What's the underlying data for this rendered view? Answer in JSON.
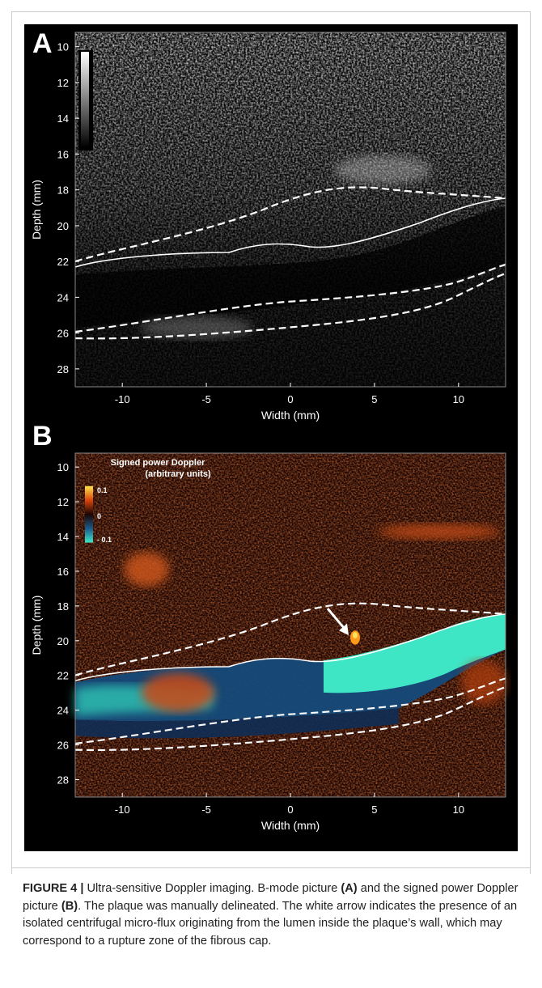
{
  "figure": {
    "panels": [
      {
        "label": "A",
        "xlabel": "Width (mm)",
        "ylabel": "Depth (mm)",
        "xlim": [
          -12.8,
          12.8
        ],
        "ylim": [
          9.2,
          29.0
        ],
        "xticks": [
          -10,
          -5,
          0,
          5,
          10
        ],
        "yticks": [
          10,
          12,
          14,
          16,
          18,
          20,
          22,
          24,
          26,
          28
        ]
      },
      {
        "label": "B",
        "xlabel": "Width (mm)",
        "ylabel": "Depth (mm)",
        "xlim": [
          -12.8,
          12.8
        ],
        "ylim": [
          9.2,
          29.0
        ],
        "xticks": [
          -10,
          -5,
          0,
          5,
          10
        ],
        "yticks": [
          10,
          12,
          14,
          16,
          18,
          20,
          22,
          24,
          26,
          28
        ],
        "colorbar": {
          "title": "Signed power Doppler",
          "subtitle": "(arbitrary units)",
          "labels": [
            "0.1",
            "0",
            "- 0.1"
          ]
        }
      }
    ]
  },
  "caption": [
    "FIGURE 4 |",
    " Ultra-sensitive Doppler imaging. B-mode picture ",
    "(A)",
    " and the signed power Doppler picture ",
    "(B)",
    ". The plaque was manually delineated. The white arrow indicates the presence of an isolated centrifugal micro-flux originating from the lumen inside the plaque’s wall, which may correspond to a rupture zone of the fibrous cap."
  ]
}
